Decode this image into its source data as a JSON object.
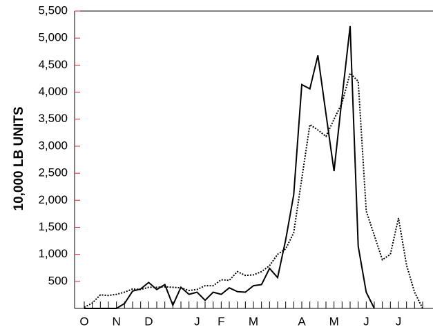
{
  "chart_data": {
    "type": "line",
    "y_label": "10,000 LB UNITS",
    "categories": [
      "O",
      null,
      null,
      null,
      "N",
      null,
      null,
      null,
      "D",
      null,
      null,
      null,
      null,
      null,
      "J",
      null,
      null,
      "F",
      null,
      null,
      null,
      "M",
      null,
      null,
      null,
      null,
      null,
      "A",
      null,
      null,
      null,
      "M",
      null,
      null,
      null,
      "J",
      null,
      null,
      null,
      "J",
      null,
      null,
      null
    ],
    "series": [
      {
        "color": "#000000",
        "line_style": "solid",
        "values": [
          0,
          0,
          0,
          0,
          0,
          90,
          320,
          360,
          480,
          350,
          440,
          60,
          390,
          260,
          300,
          150,
          300,
          260,
          380,
          310,
          300,
          420,
          440,
          740,
          570,
          1270,
          2100,
          4140,
          4060,
          4680,
          3600,
          2540,
          3900,
          5220,
          1150,
          300,
          0,
          null,
          null,
          null,
          null,
          null,
          null
        ]
      },
      {
        "color": "#000000",
        "line_style": "dotted",
        "values": [
          20,
          100,
          250,
          240,
          260,
          300,
          360,
          350,
          390,
          390,
          400,
          390,
          380,
          330,
          350,
          420,
          420,
          530,
          520,
          680,
          610,
          620,
          680,
          790,
          1000,
          1100,
          1400,
          2400,
          3400,
          3300,
          3180,
          3500,
          3800,
          4350,
          4200,
          1800,
          1350,
          900,
          1000,
          1670,
          800,
          300,
          0
        ]
      }
    ],
    "ylim": [
      0,
      5500
    ],
    "yticks": [
      {
        "value": 500,
        "label": "500"
      },
      {
        "value": 1000,
        "label": "1,000"
      },
      {
        "value": 1500,
        "label": "1,500"
      },
      {
        "value": 2000,
        "label": "2,000"
      },
      {
        "value": 2500,
        "label": "2,500"
      },
      {
        "value": 3000,
        "label": "3,000"
      },
      {
        "value": 3500,
        "label": "3,500"
      },
      {
        "value": 4000,
        "label": "4,000"
      },
      {
        "value": 4500,
        "label": "4,500"
      },
      {
        "value": 5000,
        "label": "5,000"
      },
      {
        "value": 5500,
        "label": "5,500"
      }
    ],
    "tick_color": "#e02020"
  }
}
